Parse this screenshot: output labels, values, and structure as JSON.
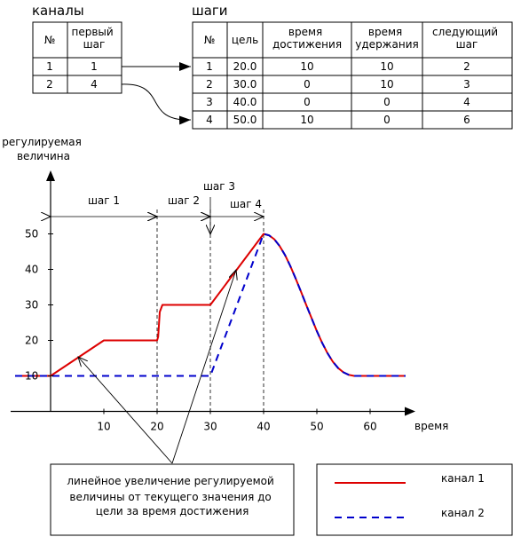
{
  "channels_table": {
    "title": "каналы",
    "headers": [
      "№",
      "первый\nшаг"
    ],
    "rows": [
      [
        "1",
        "1"
      ],
      [
        "2",
        "4"
      ]
    ]
  },
  "steps_table": {
    "title": "шаги",
    "headers": [
      "№",
      "цель",
      "время\nдостижения",
      "время\nудержания",
      "следующий\nшаг"
    ],
    "rows": [
      [
        "1",
        "20.0",
        "10",
        "10",
        "2"
      ],
      [
        "2",
        "30.0",
        "0",
        "10",
        "3"
      ],
      [
        "3",
        "40.0",
        "0",
        "0",
        "4"
      ],
      [
        "4",
        "50.0",
        "10",
        "0",
        "6"
      ]
    ]
  },
  "chart_data": {
    "type": "line",
    "ylabel": "регулируемая\nвеличина",
    "xlabel": "время",
    "xlim": [
      -7,
      68
    ],
    "ylim": [
      0,
      57
    ],
    "x_ticks": [
      10,
      20,
      30,
      40,
      50,
      60
    ],
    "y_ticks": [
      10,
      20,
      30,
      40,
      50
    ],
    "series": [
      {
        "name": "канал 1",
        "color": "#dd0000",
        "style": "solid",
        "points": [
          [
            -7,
            10
          ],
          [
            0,
            10
          ],
          [
            10,
            20
          ],
          [
            20,
            20
          ],
          [
            20.2,
            21
          ],
          [
            20.5,
            28
          ],
          [
            21,
            30
          ],
          [
            30,
            30
          ],
          [
            40,
            50
          ],
          [
            41,
            49.6
          ],
          [
            42,
            48.5
          ],
          [
            43,
            46.6
          ],
          [
            44,
            44.1
          ],
          [
            45,
            41
          ],
          [
            46,
            37.5
          ],
          [
            47,
            33.8
          ],
          [
            48,
            30
          ],
          [
            49,
            26.3
          ],
          [
            50,
            22.6
          ],
          [
            51,
            19.3
          ],
          [
            52,
            16.4
          ],
          [
            53,
            14
          ],
          [
            54,
            12.2
          ],
          [
            55,
            11
          ],
          [
            56,
            10.3
          ],
          [
            57,
            10
          ],
          [
            67,
            10
          ]
        ]
      },
      {
        "name": "канал 2",
        "color": "#0000cc",
        "style": "dashed",
        "points": [
          [
            -7,
            10
          ],
          [
            30,
            10
          ],
          [
            40,
            50
          ],
          [
            41,
            49.6
          ],
          [
            42,
            48.5
          ],
          [
            43,
            46.6
          ],
          [
            44,
            44.1
          ],
          [
            45,
            41
          ],
          [
            46,
            37.5
          ],
          [
            47,
            33.8
          ],
          [
            48,
            30
          ],
          [
            49,
            26.3
          ],
          [
            50,
            22.6
          ],
          [
            51,
            19.3
          ],
          [
            52,
            16.4
          ],
          [
            53,
            14
          ],
          [
            54,
            12.2
          ],
          [
            55,
            11
          ],
          [
            56,
            10.3
          ],
          [
            57,
            10
          ],
          [
            67,
            10
          ]
        ]
      }
    ],
    "step_markers": [
      {
        "label": "шаг 1",
        "from": 0,
        "to": 20
      },
      {
        "label": "шаг 2",
        "from": 20,
        "to": 30
      },
      {
        "label": "шаг 3",
        "at": 30
      },
      {
        "label": "шаг 4",
        "from": 30,
        "to": 40
      }
    ],
    "annotation": "линейное увеличение регулируемой\nвеличины от текущего значения до\nцели за время достижения"
  },
  "legend": {
    "entries": [
      {
        "label": "канал 1",
        "color": "#dd0000",
        "style": "solid"
      },
      {
        "label": "канал 2",
        "color": "#0000cc",
        "style": "dashed"
      }
    ]
  }
}
